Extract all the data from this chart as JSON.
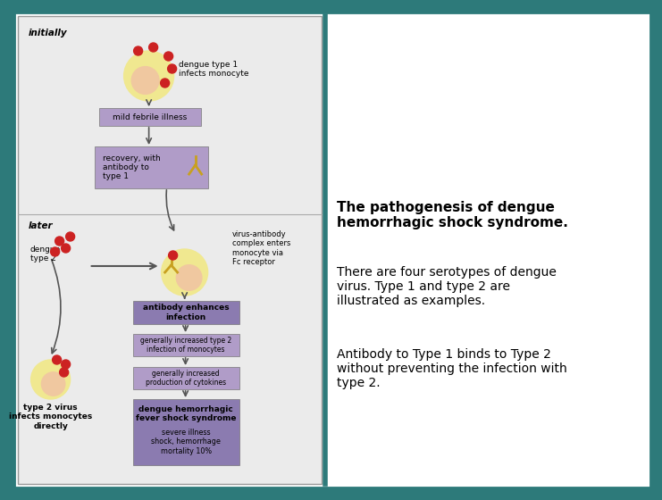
{
  "bg_outer": "#2d7a7a",
  "bg_inner": "#ffffff",
  "bg_diagram": "#ebebeb",
  "box_purple_light": "#b09cc8",
  "box_purple_mid": "#9b8abf",
  "box_purple_dark": "#8b7bb0",
  "cell_yellow": "#f0e890",
  "cell_nucleus": "#f0c8a0",
  "virus_red": "#cc2222",
  "antibody_gold": "#c8a020",
  "arrow_color": "#555555",
  "text_black": "#000000",
  "divider_color": "#aaaaaa",
  "separator_color": "#2d7a7a",
  "title1": "The pathogenesis of dengue\nhemorrhagic shock syndrome.",
  "para2": "There are four serotypes of dengue\nvirus. Type 1 and type 2 are\nillustrated as examples.",
  "para3": "Antibody to Type 1 binds to Type 2\nwithout preventing the infection with\ntype 2.",
  "label_initially": "initially",
  "label_later": "later",
  "label_dengue_type1": "dengue type 1\ninfects monocyte",
  "label_mild": "mild febrile illness",
  "label_recovery": "recovery, with\nantibody to\ntype 1",
  "label_virus_antibody": "virus-antibody\ncomplex enters\nmonocyte via\nFc receptor",
  "label_dengue_type2": "dengue\ntype 2",
  "label_antibody_enhances": "antibody enhances\ninfection",
  "label_increased_type2": "generally increased type 2\ninfection of monocytes",
  "label_increased_cytokines": "generally increased\nproduction of cytokines",
  "label_dhf_bold": "dengue hemorrhagic\nfever shock syndrome",
  "label_dhf_normal": "severe illness\nshock, hemorrhage\nmortality 10%",
  "label_type2_virus": "type 2 virus\ninfects monocytes\ndirectly"
}
